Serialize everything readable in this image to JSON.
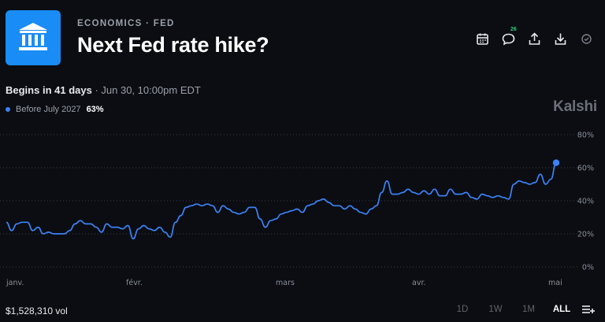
{
  "header": {
    "category": "ECONOMICS · FED",
    "title": "Next Fed rate hike?",
    "comment_count": "26",
    "logo_icon": "bank-icon",
    "accent_color": "#1a8cf5"
  },
  "toolbar": {
    "icons": [
      "calendar-icon",
      "comment-icon",
      "share-icon",
      "download-icon",
      "check-circle-icon"
    ]
  },
  "schedule": {
    "begins": "Begins in 41 days",
    "separator": " · ",
    "date": "Jun 30, 10:00pm EDT"
  },
  "legend": {
    "label": "Before July 2027",
    "value": "63%",
    "color": "#3b82f6"
  },
  "brand": "Kalshi",
  "chart_data": {
    "type": "line",
    "x_labels": [
      "janv.",
      "févr.",
      "mars",
      "avr.",
      "mai"
    ],
    "y_ticks": [
      "0%",
      "20%",
      "40%",
      "60%",
      "80%"
    ],
    "ylim": [
      0,
      80
    ],
    "grid": true,
    "series": [
      {
        "color": "#3b82f6",
        "values": [
          27,
          22,
          26,
          27,
          27,
          22,
          24,
          20,
          21,
          20,
          20,
          20,
          22,
          26,
          28,
          26,
          26,
          24,
          21,
          26,
          24,
          24,
          23,
          25,
          17,
          23,
          25,
          23,
          22,
          24,
          21,
          18,
          27,
          31,
          36,
          37,
          38,
          37,
          38,
          37,
          33,
          37,
          35,
          33,
          32,
          33,
          36,
          36,
          29,
          24,
          28,
          29,
          32,
          33,
          34,
          35,
          33,
          37,
          38,
          40,
          41,
          39,
          37,
          37,
          35,
          37,
          35,
          33,
          32,
          35,
          37,
          45,
          52,
          44,
          44,
          45,
          47,
          45,
          44,
          46,
          44,
          47,
          43,
          43,
          47,
          44,
          44,
          45,
          42,
          41,
          44,
          43,
          42,
          43,
          42,
          41,
          50,
          52,
          51,
          50,
          51,
          56,
          50,
          53,
          63
        ]
      }
    ]
  },
  "footer": {
    "volume": "$1,528,310 vol",
    "ranges": [
      "1D",
      "1W",
      "1M",
      "ALL"
    ],
    "active_range": "ALL",
    "menu_icon": "list-filter-icon"
  }
}
